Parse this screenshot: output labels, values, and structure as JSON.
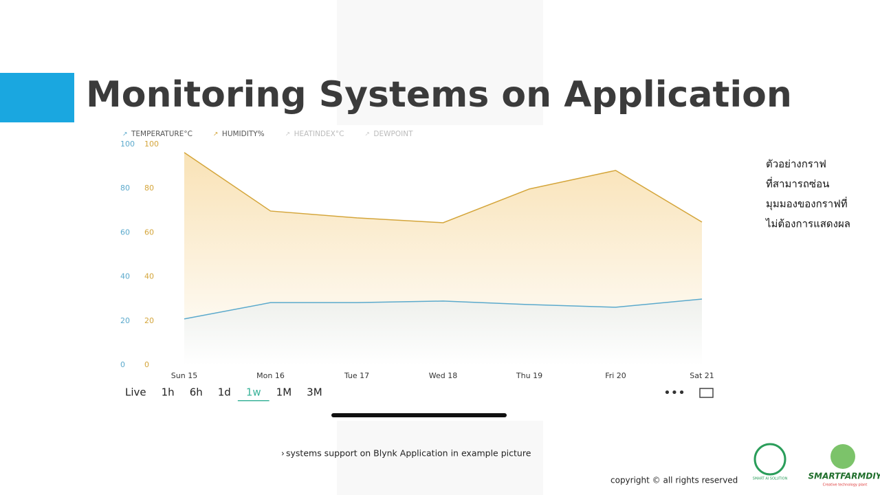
{
  "title": "Monitoring Systems on Application",
  "chart_data": {
    "type": "area",
    "categories": [
      "Sun 15",
      "Mon 16",
      "Tue 17",
      "Wed 18",
      "Thu 19",
      "Fri 20",
      "Sat 21"
    ],
    "series": [
      {
        "name": "TEMPERATURE°C",
        "color": "#5aa9cc",
        "values": [
          20.9,
          28.3,
          28.3,
          29,
          27.4,
          26.2,
          29.9
        ]
      },
      {
        "name": "HUMIDITY%",
        "color": "#d4a53a",
        "axis": "y2",
        "values": [
          96.3,
          69.8,
          66.7,
          64.5,
          79.8,
          88.2,
          64.8
        ]
      }
    ],
    "legend_hidden": [
      "HEATINDEX°C",
      "DEWPOINT"
    ],
    "ylim": [
      0,
      100
    ],
    "yticks": [
      0,
      20,
      40,
      60,
      80,
      100
    ],
    "y2lim": [
      0,
      100
    ],
    "y2ticks": [
      0,
      20,
      40,
      60,
      80,
      100
    ],
    "grid": false
  },
  "range_buttons": [
    "Live",
    "1h",
    "6h",
    "1d",
    "1w",
    "1M",
    "3M"
  ],
  "selected_range": "1w",
  "side_note": [
    "ตัวอย่างกราฟ",
    "ที่สามารถซ่อน",
    "มุมมองของกราฟที่",
    "ไม่ต้องการแสดงผล"
  ],
  "caption": "systems support on Blynk Application in example picture",
  "copyright": "copyright © all rights reserved",
  "logos": [
    "SMART AI SOLUTION",
    "SMARTFARMDIY",
    "Creative technology plant"
  ]
}
